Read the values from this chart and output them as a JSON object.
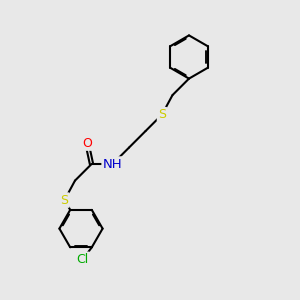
{
  "bg_color": "#e8e8e8",
  "bond_color": "#000000",
  "bond_lw": 1.5,
  "aromatic_lw": 1.2,
  "font_size": 9,
  "atom_colors": {
    "O": "#ff0000",
    "N": "#0000cc",
    "S": "#cccc00",
    "Cl": "#00aa00",
    "C": "#000000",
    "H": "#000000"
  },
  "figsize": [
    3.0,
    3.0
  ],
  "dpi": 100
}
